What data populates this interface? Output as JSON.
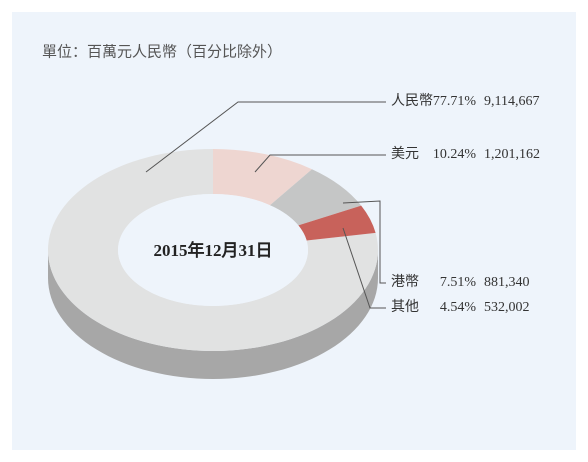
{
  "chart_data": {
    "type": "donut",
    "title": "單位：百萬元人民幣（百分比除外）",
    "center_label": "2015年12月31日",
    "categories": [
      "人民幣",
      "美元",
      "港幣",
      "其他"
    ],
    "values": [
      77.71,
      10.24,
      7.51,
      4.54
    ],
    "value_labels": [
      "77.71%",
      "10.24%",
      "7.51%",
      "4.54%"
    ],
    "amounts": [
      9114667,
      1201162,
      881340,
      532002
    ],
    "amount_labels": [
      "9,114,667",
      "1,201,162",
      "881,340",
      "532,002"
    ],
    "colors": [
      "#e1e2e2",
      "#eed6d1",
      "#c5c6c6",
      "#c8625b"
    ]
  }
}
